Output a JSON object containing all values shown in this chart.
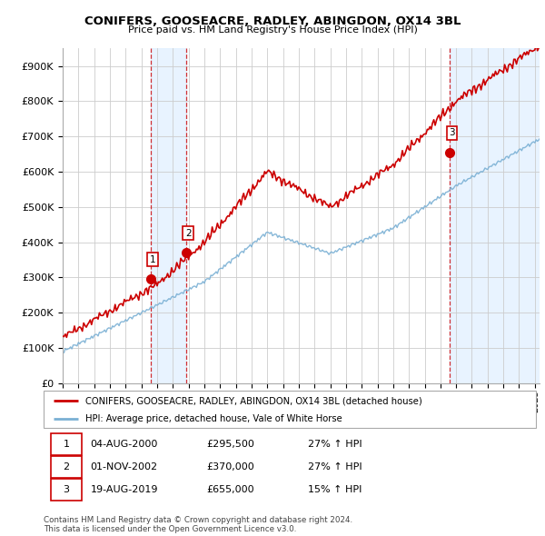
{
  "title1": "CONIFERS, GOOSEACRE, RADLEY, ABINGDON, OX14 3BL",
  "title2": "Price paid vs. HM Land Registry's House Price Index (HPI)",
  "legend_label1": "CONIFERS, GOOSEACRE, RADLEY, ABINGDON, OX14 3BL (detached house)",
  "legend_label2": "HPI: Average price, detached house, Vale of White Horse",
  "sale1_date": "04-AUG-2000",
  "sale1_price": 295500,
  "sale1_label": "27% ↑ HPI",
  "sale2_date": "01-NOV-2002",
  "sale2_price": 370000,
  "sale2_label": "27% ↑ HPI",
  "sale3_date": "19-AUG-2019",
  "sale3_price": 655000,
  "sale3_label": "15% ↑ HPI",
  "footer": "Contains HM Land Registry data © Crown copyright and database right 2024.\nThis data is licensed under the Open Government Licence v3.0.",
  "sale_color": "#cc0000",
  "hpi_color": "#7ab0d4",
  "shade_color": "#ddeeff",
  "ylim": [
    0,
    950000
  ],
  "yticks": [
    0,
    100000,
    200000,
    300000,
    400000,
    500000,
    600000,
    700000,
    800000,
    900000
  ],
  "xlim_start": 1995.5,
  "xlim_end": 2025.3
}
